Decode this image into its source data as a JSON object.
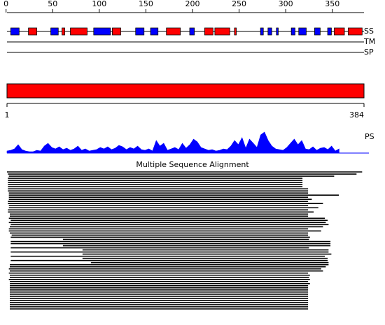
{
  "axis": {
    "ticks": [
      0,
      50,
      100,
      150,
      200,
      250,
      300,
      350
    ]
  },
  "tracks": {
    "ss": {
      "label": "SS",
      "colors": {
        "helix": "#ff0000",
        "strand": "#0000ff"
      },
      "elements": [
        {
          "type": "strand",
          "start": 5,
          "end": 14
        },
        {
          "type": "helix",
          "start": 24,
          "end": 33
        },
        {
          "type": "strand",
          "start": 48,
          "end": 56
        },
        {
          "type": "helix",
          "start": 60,
          "end": 63
        },
        {
          "type": "helix",
          "start": 69,
          "end": 87
        },
        {
          "type": "strand",
          "start": 94,
          "end": 112
        },
        {
          "type": "helix",
          "start": 114,
          "end": 123
        },
        {
          "type": "strand",
          "start": 139,
          "end": 148
        },
        {
          "type": "strand",
          "start": 155,
          "end": 163
        },
        {
          "type": "helix",
          "start": 172,
          "end": 187
        },
        {
          "type": "strand",
          "start": 197,
          "end": 202
        },
        {
          "type": "helix",
          "start": 213,
          "end": 222
        },
        {
          "type": "helix",
          "start": 224,
          "end": 240
        },
        {
          "type": "helix",
          "start": 245,
          "end": 247
        },
        {
          "type": "strand",
          "start": 273,
          "end": 276
        },
        {
          "type": "strand",
          "start": 281,
          "end": 285
        },
        {
          "type": "strand",
          "start": 290,
          "end": 292
        },
        {
          "type": "strand",
          "start": 306,
          "end": 310
        },
        {
          "type": "strand",
          "start": 314,
          "end": 322
        },
        {
          "type": "strand",
          "start": 331,
          "end": 337
        },
        {
          "type": "strand",
          "start": 345,
          "end": 349
        },
        {
          "type": "helix",
          "start": 352,
          "end": 363
        },
        {
          "type": "helix",
          "start": 367,
          "end": 382
        }
      ]
    },
    "tm": {
      "label": "TM"
    },
    "sp": {
      "label": "SP"
    }
  },
  "domain": {
    "start": 1,
    "end": 384,
    "color": "#ff0000"
  },
  "ps": {
    "label": "PS",
    "color": "#0000ff",
    "ylim": [
      0,
      30
    ],
    "values": [
      3,
      4,
      6,
      12,
      5,
      3,
      2,
      2,
      4,
      3,
      10,
      14,
      8,
      6,
      9,
      5,
      7,
      4,
      6,
      10,
      4,
      6,
      3,
      4,
      5,
      8,
      6,
      9,
      5,
      7,
      11,
      9,
      5,
      8,
      6,
      10,
      5,
      4,
      6,
      3,
      18,
      10,
      14,
      4,
      6,
      8,
      5,
      14,
      7,
      12,
      20,
      16,
      8,
      6,
      4,
      5,
      3,
      4,
      6,
      5,
      10,
      18,
      12,
      22,
      7,
      20,
      14,
      8,
      26,
      30,
      18,
      10,
      6,
      5,
      4,
      8,
      14,
      20,
      12,
      18,
      6,
      5,
      9,
      4,
      7,
      8,
      5,
      10,
      3,
      6
    ]
  },
  "msa": {
    "title": "Multiple Sequence Alignment",
    "rows": [
      [
        1,
        382
      ],
      [
        2,
        376
      ],
      [
        3,
        352
      ],
      [
        2,
        318
      ],
      [
        2,
        318
      ],
      [
        2,
        318
      ],
      [
        2,
        318
      ],
      [
        2,
        318
      ],
      [
        2,
        324
      ],
      [
        2,
        324
      ],
      [
        3,
        324
      ],
      [
        3,
        357
      ],
      [
        3,
        324
      ],
      [
        3,
        328
      ],
      [
        2,
        324
      ],
      [
        2,
        340
      ],
      [
        3,
        324
      ],
      [
        3,
        335
      ],
      [
        2,
        324
      ],
      [
        2,
        330
      ],
      [
        4,
        324
      ],
      [
        4,
        324
      ],
      [
        3,
        342
      ],
      [
        5,
        345
      ],
      [
        3,
        343
      ],
      [
        5,
        346
      ],
      [
        4,
        340
      ],
      [
        3,
        324
      ],
      [
        3,
        338
      ],
      [
        4,
        324
      ],
      [
        6,
        324
      ],
      [
        5,
        326
      ],
      [
        61,
        325
      ],
      [
        5,
        348
      ],
      [
        5,
        348
      ],
      [
        61,
        348
      ],
      [
        5,
        325
      ],
      [
        82,
        346
      ],
      [
        5,
        346
      ],
      [
        82,
        349
      ],
      [
        5,
        342
      ],
      [
        82,
        345
      ],
      [
        5,
        345
      ],
      [
        91,
        346
      ],
      [
        4,
        346
      ],
      [
        4,
        343
      ],
      [
        3,
        338
      ],
      [
        4,
        340
      ],
      [
        3,
        324
      ],
      [
        4,
        326
      ],
      [
        4,
        325
      ],
      [
        3,
        326
      ],
      [
        4,
        324
      ],
      [
        4,
        326
      ],
      [
        4,
        324
      ],
      [
        4,
        324
      ],
      [
        4,
        324
      ],
      [
        4,
        324
      ],
      [
        4,
        324
      ],
      [
        4,
        324
      ],
      [
        4,
        324
      ],
      [
        4,
        324
      ],
      [
        4,
        324
      ],
      [
        4,
        324
      ],
      [
        4,
        324
      ],
      [
        4,
        324
      ]
    ]
  }
}
